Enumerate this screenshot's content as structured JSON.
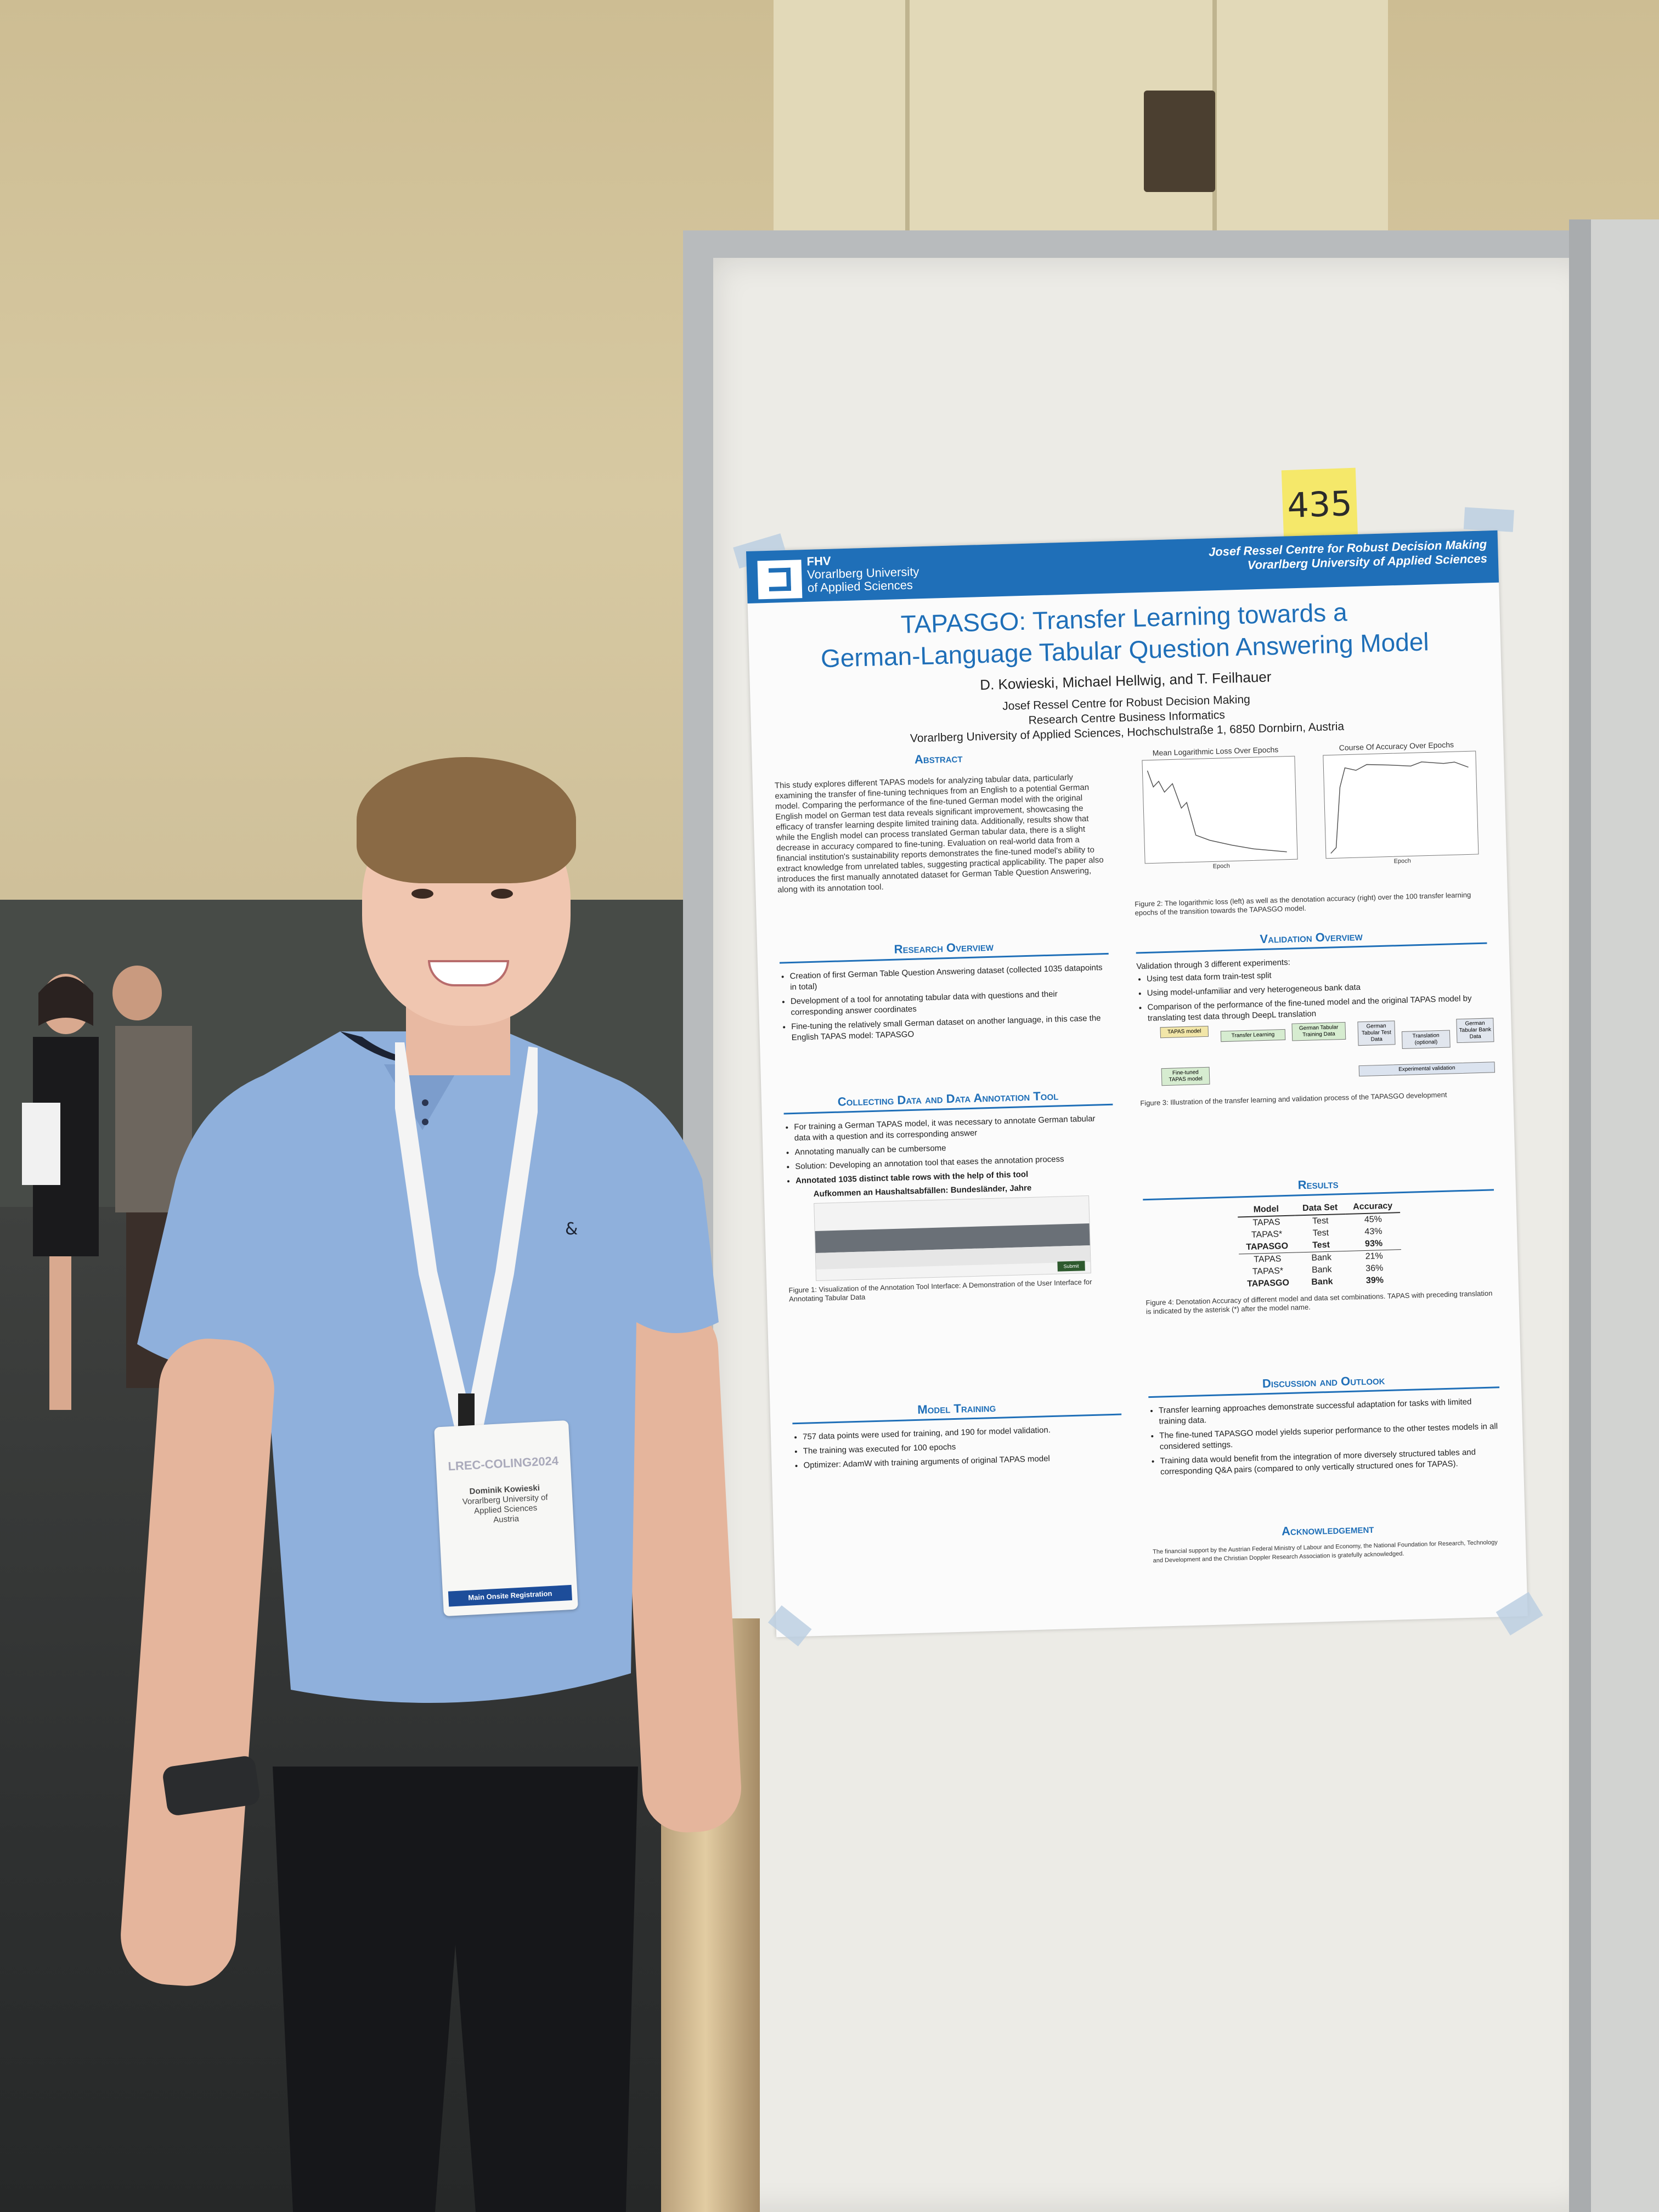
{
  "sticky_note": "435",
  "badge": {
    "event": "LREC-COLING2024",
    "name": "Dominik Kowieski",
    "affiliation_line1": "Vorarlberg University of",
    "affiliation_line2": "Applied Sciences",
    "country": "Austria",
    "registration": "Main Onsite Registration"
  },
  "poster": {
    "header_left_line1": "FHV",
    "header_left_line2": "Vorarlberg University",
    "header_left_line3": "of Applied Sciences",
    "header_right_line1": "Josef Ressel Centre for Robust Decision Making",
    "header_right_line2": "Vorarlberg University of Applied Sciences",
    "title_line1": "TAPASGO: Transfer Learning towards a",
    "title_line2": "German-Language Tabular Question Answering Model",
    "authors": "D. Kowieski, Michael Hellwig, and T. Feilhauer",
    "affil_line1": "Josef Ressel Centre for Robust Decision Making",
    "affil_line2": "Research Centre Business Informatics",
    "affil_line3": "Vorarlberg University of Applied Sciences, Hochschulstraße 1, 6850 Dornbirn, Austria",
    "abstract_heading": "Abstract",
    "abstract_text": "This study explores different TAPAS models for analyzing tabular data, particularly examining the transfer of fine-tuning techniques from an English to a potential German model. Comparing the performance of the fine-tuned German model with the original English model on German test data reveals significant improvement, showcasing the efficacy of transfer learning despite limited training data. Additionally, results show that while the English model can process translated German tabular data, there is a slight decrease in accuracy compared to fine-tuning. Evaluation on real-world data from a financial institution's sustainability reports demonstrates the fine-tuned model's ability to extract knowledge from unrelated tables, suggesting practical applicability. The paper also introduces the first manually annotated dataset for German Table Question Answering, along with its annotation tool.",
    "chart1_title": "Mean Logarithmic Loss Over Epochs",
    "chart2_title": "Course Of Accuracy Over Epochs",
    "chart_xlabel": "Epoch",
    "fig2_caption": "Figure 2: The logarithmic loss (left) as well as the denotation accuracy (right) over the 100 transfer learning epochs of the transition towards the TAPASGO model.",
    "research_heading": "Research Overview",
    "research_items": [
      "Creation of first German Table Question Answering dataset (collected 1035 datapoints in total)",
      "Development of a tool for annotating tabular data with questions and their corresponding answer coordinates",
      "Fine-tuning the relatively small German dataset on another language, in this case the English TAPAS model: TAPASGO"
    ],
    "validation_heading": "Validation Overview",
    "validation_intro": "Validation through 3 different experiments:",
    "validation_items": [
      "Using test data form train-test split",
      "Using model-unfamiliar and very heterogeneous bank data",
      "Comparison of the performance of the fine-tuned model and the original TAPAS model by translating test data through DeepL translation"
    ],
    "fig3_caption": "Figure 3: Illustration of the transfer learning and validation process of the TAPASGO development",
    "diagram": {
      "tapas": "TAPAS model",
      "transfer": "Transfer Learning",
      "german_tabular": "German Tabular Training Data",
      "finetuned": "Fine-tuned TAPAS model",
      "german_test": "German Tabular Test Data",
      "translation": "Translation (optional)",
      "bank": "German Tabular Bank Data",
      "experimental": "Experimental validation"
    },
    "collecting_heading": "Collecting Data and Data Annotation Tool",
    "collecting_items": [
      "For training a German TAPAS model, it was necessary to annotate German tabular data with a question and its corresponding answer",
      "Annotating manually can be cumbersome",
      "Solution: Developing an annotation tool that eases the annotation process",
      "Annotated 1035 distinct table rows with the help of this tool"
    ],
    "tool_title": "Aufkommen an Haushaltsabfällen: Bundesländer, Jahre",
    "tool_submit": "Submit",
    "fig1_caption": "Figure 1: Visualization of the Annotation Tool Interface: A Demonstration of the User Interface for Annotating Tabular Data",
    "results_heading": "Results",
    "results_columns": [
      "Model",
      "Data Set",
      "Accuracy"
    ],
    "results_rows": [
      [
        "TAPAS",
        "Test",
        "45%"
      ],
      [
        "TAPAS*",
        "Test",
        "43%"
      ],
      [
        "TAPASGO",
        "Test",
        "93%"
      ],
      [
        "TAPAS",
        "Bank",
        "21%"
      ],
      [
        "TAPAS*",
        "Bank",
        "36%"
      ],
      [
        "TAPASGO",
        "Bank",
        "39%"
      ]
    ],
    "fig4_caption": "Figure 4: Denotation Accuracy of different model and data set combinations. TAPAS with preceding translation is indicated by the asterisk (*) after the model name.",
    "training_heading": "Model Training",
    "training_items": [
      "757 data points were used for training, and 190 for model validation.",
      "The training was executed for 100 epochs",
      "Optimizer: AdamW with training arguments of original TAPAS model"
    ],
    "discussion_heading": "Discussion and Outlook",
    "discussion_items": [
      "Transfer learning approaches demonstrate successful adaptation for tasks with limited training data.",
      "The fine-tuned TAPASGO model yields superior performance to the other testes models in all considered settings.",
      "Training data would benefit from the integration of more diversely structured tables and corresponding Q&A pairs (compared to only vertically structured ones for TAPAS)."
    ],
    "ack_heading": "Acknowledgement",
    "ack_text": "The financial support by the Austrian Federal Ministry of Labour and Economy, the National Foundation for Research, Technology and Development and the Christian Doppler Research Association is gratefully acknowledged."
  },
  "colors": {
    "poster_blue": "#1f6fb8",
    "shirt": "#8fb0dc",
    "board": "#ecebe6"
  }
}
